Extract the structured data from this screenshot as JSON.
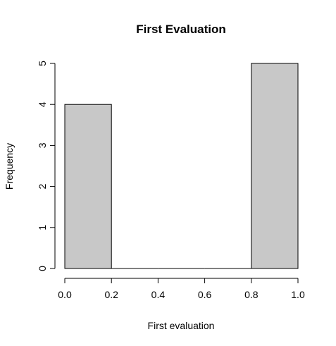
{
  "chart_data": {
    "type": "bar",
    "subtype": "histogram",
    "title": "First Evaluation",
    "xlabel": "First evaluation",
    "ylabel": "Frequency",
    "bins": [
      {
        "start": 0.0,
        "end": 0.2,
        "count": 4
      },
      {
        "start": 0.2,
        "end": 0.4,
        "count": 0
      },
      {
        "start": 0.4,
        "end": 0.6,
        "count": 0
      },
      {
        "start": 0.6,
        "end": 0.8,
        "count": 0
      },
      {
        "start": 0.8,
        "end": 1.0,
        "count": 5
      }
    ],
    "xlim": [
      0.0,
      1.0
    ],
    "ylim": [
      0,
      5
    ],
    "x_ticks": [
      "0.0",
      "0.2",
      "0.4",
      "0.6",
      "0.8",
      "1.0"
    ],
    "y_ticks": [
      "0",
      "1",
      "2",
      "3",
      "4",
      "5"
    ],
    "bar_fill": "#c8c8c8",
    "bar_stroke": "#000000",
    "grid": false,
    "legend": "none"
  }
}
